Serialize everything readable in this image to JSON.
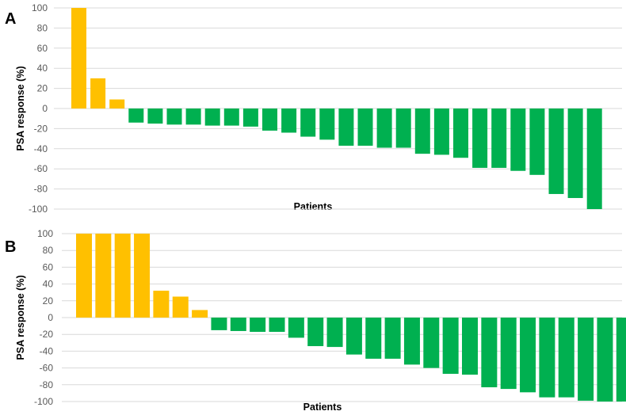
{
  "colors": {
    "increase": "#FFC000",
    "decrease": "#00B050",
    "grid": "#D9D9D9"
  },
  "chart_data": [
    {
      "type": "bar",
      "panel_label": "A",
      "xlabel": "Patients",
      "ylabel": "PSA response (%)",
      "ylim": [
        -100,
        100
      ],
      "yticks": [
        100,
        80,
        60,
        40,
        20,
        0,
        -20,
        -40,
        -60,
        -80,
        -100
      ],
      "grid": true,
      "values": [
        100,
        30,
        9,
        -14,
        -15,
        -16,
        -16,
        -17,
        -17,
        -18,
        -22,
        -24,
        -28,
        -31,
        -37,
        -37,
        -39,
        -39,
        -45,
        -46,
        -49,
        -59,
        -59,
        -62,
        -66,
        -85,
        -89,
        -100
      ]
    },
    {
      "type": "bar",
      "panel_label": "B",
      "xlabel": "Patients",
      "ylabel": "PSA response (%)",
      "ylim": [
        -100,
        100
      ],
      "yticks": [
        100,
        80,
        60,
        40,
        20,
        0,
        -20,
        -40,
        -60,
        -80,
        -100
      ],
      "grid": true,
      "values": [
        100,
        100,
        100,
        100,
        32,
        25,
        9,
        -15,
        -16,
        -17,
        -17,
        -24,
        -34,
        -35,
        -44,
        -49,
        -49,
        -56,
        -60,
        -67,
        -68,
        -83,
        -85,
        -89,
        -95,
        -95,
        -99,
        -100,
        -100
      ]
    }
  ]
}
